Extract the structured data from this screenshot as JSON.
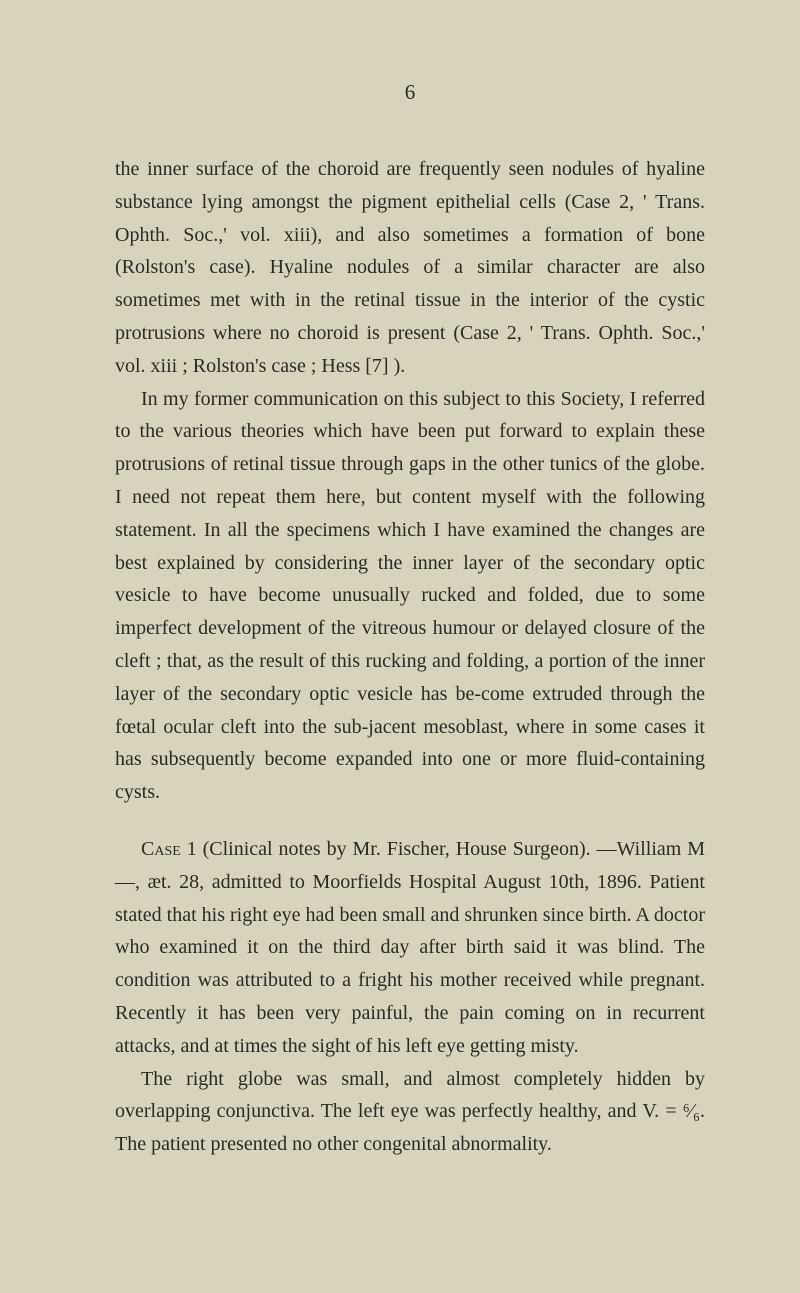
{
  "pageNumber": "6",
  "paragraphs": {
    "p1": "the inner surface of the choroid are frequently seen nodules of hyaline substance lying amongst the pigment epithelial cells (Case 2, ' Trans. Ophth. Soc.,' vol. xiii), and also sometimes a formation of bone (Rolston's case). Hyaline nodules of a similar character are also sometimes met with in the retinal tissue in the interior of the cystic protrusions where no choroid is present (Case 2, ' Trans. Ophth. Soc.,' vol. xiii ; Rolston's case ; Hess [7] ).",
    "p2": "In my former communication on this subject to this Society, I referred to the various theories which have been put forward to explain these protrusions of retinal tissue through gaps in the other tunics of the globe. I need not repeat them here, but content myself with the following statement. In all the specimens which I have examined the changes are best explained by considering the inner layer of the secondary optic vesicle to have become unusually rucked and folded, due to some imperfect development of the vitreous humour or delayed closure of the cleft ; that, as the result of this rucking and folding, a portion of the inner layer of the secondary optic vesicle has be-come extruded through the fœtal ocular cleft into the sub-jacent mesoblast, where in some cases it has subsequently become expanded into one or more fluid-containing cysts.",
    "p3_prefix": "Case",
    "p3_body": " 1 (Clinical notes by Mr. Fischer, House Surgeon). —William M—, æt. 28, admitted to Moorfields Hospital August 10th, 1896. Patient stated that his right eye had been small and shrunken since birth. A doctor who examined it on the third day after birth said it was blind. The condition was attributed to a fright his mother received while pregnant. Recently it has been very painful, the pain coming on in recurrent attacks, and at times the sight of his left eye getting misty.",
    "p4": "The right globe was small, and almost completely hidden by overlapping conjunctiva. The left eye was perfectly healthy, and V. = ⁶⁄₆. The patient presented no other congenital abnormality."
  }
}
